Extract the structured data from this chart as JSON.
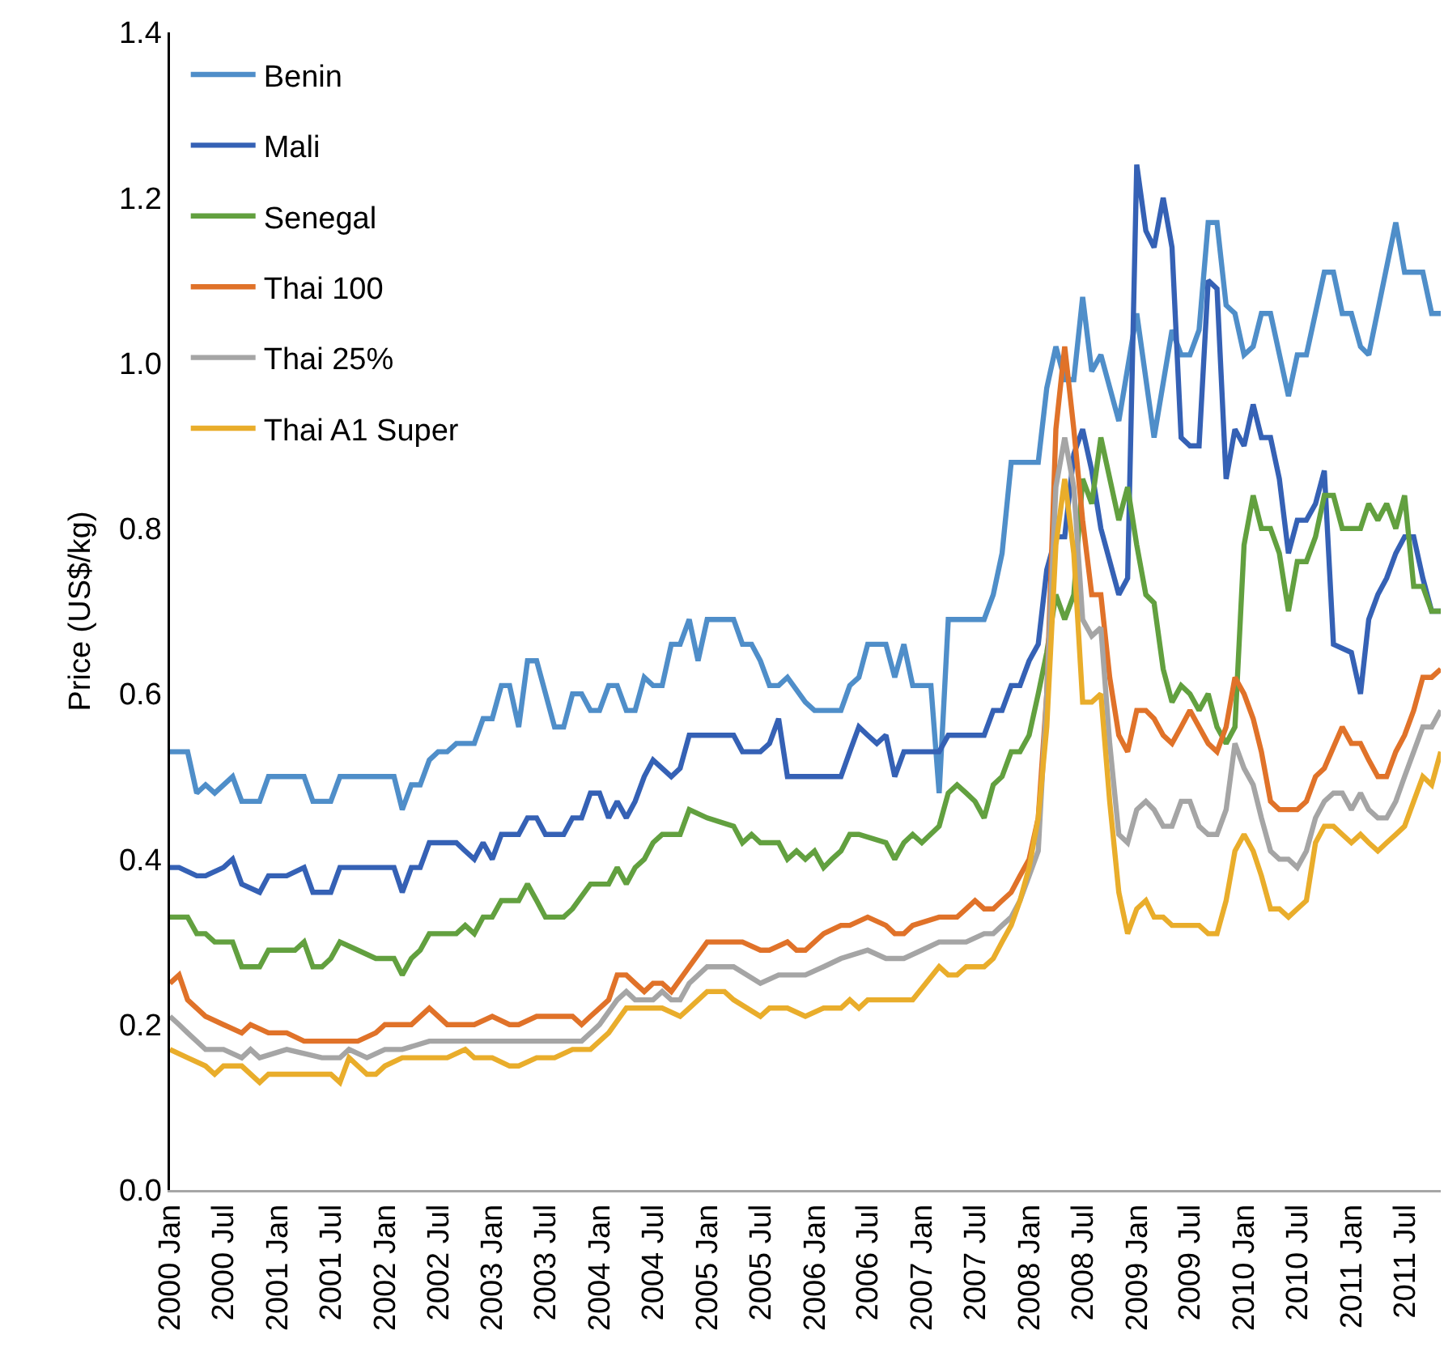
{
  "chart_data": {
    "type": "line",
    "ylabel": "Price (US$/kg)",
    "legend": "top left",
    "grid": false,
    "marker": "none",
    "line_style": "solid",
    "xlim": [
      "2000-01",
      "2011-11"
    ],
    "xticks": [
      {
        "value": "2000-01",
        "label": "2000 Jan"
      },
      {
        "value": "2000-07",
        "label": "2000 Jul"
      },
      {
        "value": "2001-01",
        "label": "2001 Jan"
      },
      {
        "value": "2001-07",
        "label": "2001 Jul"
      },
      {
        "value": "2002-01",
        "label": "2002 Jan"
      },
      {
        "value": "2002-07",
        "label": "2002 Jul"
      },
      {
        "value": "2003-01",
        "label": "2003 Jan"
      },
      {
        "value": "2003-07",
        "label": "2003 Jul"
      },
      {
        "value": "2004-01",
        "label": "2004 Jan"
      },
      {
        "value": "2004-07",
        "label": "2004 Jul"
      },
      {
        "value": "2005-01",
        "label": "2005 Jan"
      },
      {
        "value": "2005-07",
        "label": "2005 Jul"
      },
      {
        "value": "2006-01",
        "label": "2006 Jan"
      },
      {
        "value": "2006-07",
        "label": "2006 Jul"
      },
      {
        "value": "2007-01",
        "label": "2007 Jan"
      },
      {
        "value": "2007-07",
        "label": "2007 Jul"
      },
      {
        "value": "2008-01",
        "label": "2008 Jan"
      },
      {
        "value": "2008-07",
        "label": "2008 Jul"
      },
      {
        "value": "2009-01",
        "label": "2009 Jan"
      },
      {
        "value": "2009-07",
        "label": "2009 Jul"
      },
      {
        "value": "2010-01",
        "label": "2010 Jan"
      },
      {
        "value": "2010-07",
        "label": "2010 Jul"
      },
      {
        "value": "2011-01",
        "label": "2011 Jan"
      },
      {
        "value": "2011-07",
        "label": "2011 Jul"
      }
    ],
    "ylim": [
      0,
      1.4
    ],
    "yticks": [
      {
        "value": 0,
        "label": "0.0"
      },
      {
        "value": 0.2,
        "label": "0.2"
      },
      {
        "value": 0.4,
        "label": "0.4"
      },
      {
        "value": 0.6,
        "label": "0.6"
      },
      {
        "value": 0.8,
        "label": "0.8"
      },
      {
        "value": 1,
        "label": "1.0"
      },
      {
        "value": 1.2,
        "label": "1.2"
      },
      {
        "value": 1.4,
        "label": "1.4"
      }
    ],
    "series": [
      {
        "name": "Benin",
        "color": "#4f8ec9",
        "x": [
          "2000-01",
          "2000-03",
          "2000-04",
          "2000-05",
          "2000-06",
          "2000-08",
          "2000-09",
          "2000-11",
          "2000-12",
          "2001-04",
          "2001-05",
          "2001-07",
          "2001-08",
          "2002-02",
          "2002-03",
          "2002-04",
          "2002-05",
          "2002-06",
          "2002-07",
          "2002-08",
          "2002-09",
          "2002-11",
          "2002-12",
          "2003-01",
          "2003-02",
          "2003-03",
          "2003-04",
          "2003-05",
          "2003-06",
          "2003-08",
          "2003-09",
          "2003-10",
          "2003-11",
          "2003-12",
          "2004-01",
          "2004-02",
          "2004-03",
          "2004-04",
          "2004-05",
          "2004-06",
          "2004-07",
          "2004-08",
          "2004-09",
          "2004-10",
          "2004-11",
          "2004-12",
          "2005-01",
          "2005-04",
          "2005-05",
          "2005-06",
          "2005-07",
          "2005-08",
          "2005-09",
          "2005-10",
          "2005-12",
          "2006-01",
          "2006-04",
          "2006-05",
          "2006-06",
          "2006-07",
          "2006-09",
          "2006-10",
          "2006-11",
          "2006-12",
          "2007-02",
          "2007-03",
          "2007-04",
          "2007-08",
          "2007-09",
          "2007-10",
          "2007-11",
          "2008-02",
          "2008-03",
          "2008-04",
          "2008-05",
          "2008-06",
          "2008-07",
          "2008-08",
          "2008-09",
          "2008-11",
          "2009-01",
          "2009-03",
          "2009-05",
          "2009-06",
          "2009-07",
          "2009-08",
          "2009-09",
          "2009-10",
          "2009-11",
          "2009-12",
          "2010-01",
          "2010-02",
          "2010-03",
          "2010-04",
          "2010-06",
          "2010-07",
          "2010-08",
          "2010-10",
          "2010-11",
          "2010-12",
          "2011-01",
          "2011-02",
          "2011-03",
          "2011-06",
          "2011-07",
          "2011-09",
          "2011-10",
          "2011-11"
        ],
        "values": [
          0.53,
          0.53,
          0.48,
          0.49,
          0.48,
          0.5,
          0.47,
          0.47,
          0.5,
          0.5,
          0.47,
          0.47,
          0.5,
          0.5,
          0.46,
          0.49,
          0.49,
          0.52,
          0.53,
          0.53,
          0.54,
          0.54,
          0.57,
          0.57,
          0.61,
          0.61,
          0.56,
          0.64,
          0.64,
          0.56,
          0.56,
          0.6,
          0.6,
          0.58,
          0.58,
          0.61,
          0.61,
          0.58,
          0.58,
          0.62,
          0.61,
          0.61,
          0.66,
          0.66,
          0.69,
          0.64,
          0.69,
          0.69,
          0.66,
          0.66,
          0.64,
          0.61,
          0.61,
          0.62,
          0.59,
          0.58,
          0.58,
          0.61,
          0.62,
          0.66,
          0.66,
          0.62,
          0.66,
          0.61,
          0.61,
          0.48,
          0.69,
          0.69,
          0.72,
          0.77,
          0.88,
          0.88,
          0.97,
          1.02,
          0.98,
          0.98,
          1.08,
          0.99,
          1.01,
          0.93,
          1.06,
          0.91,
          1.04,
          1.01,
          1.01,
          1.04,
          1.17,
          1.17,
          1.07,
          1.06,
          1.01,
          1.02,
          1.06,
          1.06,
          0.96,
          1.01,
          1.01,
          1.11,
          1.11,
          1.06,
          1.06,
          1.02,
          1.01,
          1.17,
          1.11,
          1.11,
          1.06,
          1.06
        ]
      },
      {
        "name": "Mali",
        "color": "#3561b5",
        "x": [
          "2000-01",
          "2000-02",
          "2000-04",
          "2000-05",
          "2000-07",
          "2000-08",
          "2000-09",
          "2000-11",
          "2000-12",
          "2001-02",
          "2001-04",
          "2001-05",
          "2001-07",
          "2001-08",
          "2001-10",
          "2002-02",
          "2002-03",
          "2002-04",
          "2002-05",
          "2002-06",
          "2002-09",
          "2002-10",
          "2002-11",
          "2002-12",
          "2003-01",
          "2003-02",
          "2003-04",
          "2003-05",
          "2003-06",
          "2003-07",
          "2003-09",
          "2003-10",
          "2003-11",
          "2003-12",
          "2004-01",
          "2004-02",
          "2004-03",
          "2004-04",
          "2004-05",
          "2004-06",
          "2004-07",
          "2004-08",
          "2004-09",
          "2004-10",
          "2004-11",
          "2004-12",
          "2005-04",
          "2005-05",
          "2005-06",
          "2005-07",
          "2005-08",
          "2005-09",
          "2005-10",
          "2005-12",
          "2006-01",
          "2006-03",
          "2006-04",
          "2006-05",
          "2006-06",
          "2006-07",
          "2006-08",
          "2006-09",
          "2006-10",
          "2006-11",
          "2007-03",
          "2007-04",
          "2007-08",
          "2007-09",
          "2007-10",
          "2007-11",
          "2007-12",
          "2008-01",
          "2008-02",
          "2008-03",
          "2008-04",
          "2008-05",
          "2008-06",
          "2008-07",
          "2008-08",
          "2008-09",
          "2008-11",
          "2008-12",
          "2009-01",
          "2009-02",
          "2009-03",
          "2009-04",
          "2009-05",
          "2009-06",
          "2009-07",
          "2009-08",
          "2009-09",
          "2009-10",
          "2009-11",
          "2009-12",
          "2010-01",
          "2010-02",
          "2010-03",
          "2010-04",
          "2010-05",
          "2010-06",
          "2010-07",
          "2010-08",
          "2010-09",
          "2010-10",
          "2010-11",
          "2011-01",
          "2011-02",
          "2011-03",
          "2011-04",
          "2011-05",
          "2011-06",
          "2011-07",
          "2011-08",
          "2011-09",
          "2011-10",
          "2011-11"
        ],
        "values": [
          0.39,
          0.39,
          0.38,
          0.38,
          0.39,
          0.4,
          0.37,
          0.36,
          0.38,
          0.38,
          0.39,
          0.36,
          0.36,
          0.39,
          0.39,
          0.39,
          0.36,
          0.39,
          0.39,
          0.42,
          0.42,
          0.41,
          0.4,
          0.42,
          0.4,
          0.43,
          0.43,
          0.45,
          0.45,
          0.43,
          0.43,
          0.45,
          0.45,
          0.48,
          0.48,
          0.45,
          0.47,
          0.45,
          0.47,
          0.5,
          0.52,
          0.51,
          0.5,
          0.51,
          0.55,
          0.55,
          0.55,
          0.53,
          0.53,
          0.53,
          0.54,
          0.57,
          0.5,
          0.5,
          0.5,
          0.5,
          0.5,
          0.53,
          0.56,
          0.55,
          0.54,
          0.55,
          0.5,
          0.53,
          0.53,
          0.55,
          0.55,
          0.58,
          0.58,
          0.61,
          0.61,
          0.64,
          0.66,
          0.75,
          0.79,
          0.79,
          0.89,
          0.92,
          0.87,
          0.8,
          0.72,
          0.74,
          1.24,
          1.16,
          1.14,
          1.2,
          1.14,
          0.91,
          0.9,
          0.9,
          1.1,
          1.09,
          0.86,
          0.92,
          0.9,
          0.95,
          0.91,
          0.91,
          0.86,
          0.77,
          0.81,
          0.81,
          0.83,
          0.87,
          0.66,
          0.65,
          0.6,
          0.69,
          0.72,
          0.74,
          0.77,
          0.79,
          0.79,
          0.74,
          0.7,
          0.7
        ]
      },
      {
        "name": "Senegal",
        "color": "#62a03f",
        "x": [
          "2000-01",
          "2000-03",
          "2000-04",
          "2000-05",
          "2000-06",
          "2000-08",
          "2000-09",
          "2000-11",
          "2000-12",
          "2001-01",
          "2001-03",
          "2001-04",
          "2001-05",
          "2001-06",
          "2001-07",
          "2001-08",
          "2001-10",
          "2001-12",
          "2002-02",
          "2002-03",
          "2002-04",
          "2002-05",
          "2002-06",
          "2002-07",
          "2002-09",
          "2002-10",
          "2002-11",
          "2002-12",
          "2003-01",
          "2003-02",
          "2003-03",
          "2003-04",
          "2003-05",
          "2003-06",
          "2003-07",
          "2003-08",
          "2003-09",
          "2003-10",
          "2003-12",
          "2004-01",
          "2004-02",
          "2004-03",
          "2004-04",
          "2004-05",
          "2004-06",
          "2004-07",
          "2004-08",
          "2004-09",
          "2004-10",
          "2004-11",
          "2005-01",
          "2005-04",
          "2005-05",
          "2005-06",
          "2005-07",
          "2005-08",
          "2005-09",
          "2005-10",
          "2005-11",
          "2005-12",
          "2006-01",
          "2006-02",
          "2006-03",
          "2006-04",
          "2006-05",
          "2006-06",
          "2006-09",
          "2006-10",
          "2006-11",
          "2006-12",
          "2007-01",
          "2007-03",
          "2007-04",
          "2007-05",
          "2007-06",
          "2007-07",
          "2007-08",
          "2007-09",
          "2007-10",
          "2007-11",
          "2007-12",
          "2008-01",
          "2008-02",
          "2008-03",
          "2008-04",
          "2008-05",
          "2008-06",
          "2008-07",
          "2008-08",
          "2008-09",
          "2008-11",
          "2008-12",
          "2009-01",
          "2009-02",
          "2009-03",
          "2009-04",
          "2009-05",
          "2009-06",
          "2009-07",
          "2009-08",
          "2009-09",
          "2009-10",
          "2009-11",
          "2009-12",
          "2010-01",
          "2010-02",
          "2010-03",
          "2010-04",
          "2010-05",
          "2010-06",
          "2010-07",
          "2010-08",
          "2010-09",
          "2010-10",
          "2010-11",
          "2010-12",
          "2011-02",
          "2011-03",
          "2011-04",
          "2011-05",
          "2011-06",
          "2011-07",
          "2011-08",
          "2011-09",
          "2011-10",
          "2011-11"
        ],
        "values": [
          0.33,
          0.33,
          0.31,
          0.31,
          0.3,
          0.3,
          0.27,
          0.27,
          0.29,
          0.29,
          0.29,
          0.3,
          0.27,
          0.27,
          0.28,
          0.3,
          0.29,
          0.28,
          0.28,
          0.26,
          0.28,
          0.29,
          0.31,
          0.31,
          0.31,
          0.32,
          0.31,
          0.33,
          0.33,
          0.35,
          0.35,
          0.35,
          0.37,
          0.35,
          0.33,
          0.33,
          0.33,
          0.34,
          0.37,
          0.37,
          0.37,
          0.39,
          0.37,
          0.39,
          0.4,
          0.42,
          0.43,
          0.43,
          0.43,
          0.46,
          0.45,
          0.44,
          0.42,
          0.43,
          0.42,
          0.42,
          0.42,
          0.4,
          0.41,
          0.4,
          0.41,
          0.39,
          0.4,
          0.41,
          0.43,
          0.43,
          0.42,
          0.4,
          0.42,
          0.43,
          0.42,
          0.44,
          0.48,
          0.49,
          0.48,
          0.47,
          0.45,
          0.49,
          0.5,
          0.53,
          0.53,
          0.55,
          0.6,
          0.65,
          0.72,
          0.69,
          0.72,
          0.86,
          0.83,
          0.91,
          0.81,
          0.85,
          0.78,
          0.72,
          0.71,
          0.63,
          0.59,
          0.61,
          0.6,
          0.58,
          0.6,
          0.56,
          0.54,
          0.56,
          0.78,
          0.84,
          0.8,
          0.8,
          0.77,
          0.7,
          0.76,
          0.76,
          0.79,
          0.84,
          0.84,
          0.8,
          0.8,
          0.83,
          0.81,
          0.83,
          0.8,
          0.84,
          0.73,
          0.73,
          0.7,
          0.7
        ]
      },
      {
        "name": "Thai 100",
        "color": "#e07229",
        "x": [
          "2000-01",
          "2000-02",
          "2000-03",
          "2000-05",
          "2000-07",
          "2000-09",
          "2000-10",
          "2000-12",
          "2001-02",
          "2001-04",
          "2001-06",
          "2001-08",
          "2001-10",
          "2001-12",
          "2002-01",
          "2002-02",
          "2002-04",
          "2002-06",
          "2002-08",
          "2002-10",
          "2002-11",
          "2003-01",
          "2003-03",
          "2003-04",
          "2003-06",
          "2003-08",
          "2003-10",
          "2003-11",
          "2003-12",
          "2004-01",
          "2004-02",
          "2004-03",
          "2004-04",
          "2004-05",
          "2004-06",
          "2004-07",
          "2004-08",
          "2004-09",
          "2004-11",
          "2005-01",
          "2005-04",
          "2005-05",
          "2005-07",
          "2005-08",
          "2005-10",
          "2005-11",
          "2005-12",
          "2006-02",
          "2006-04",
          "2006-05",
          "2006-07",
          "2006-09",
          "2006-10",
          "2006-11",
          "2006-12",
          "2007-03",
          "2007-04",
          "2007-05",
          "2007-06",
          "2007-07",
          "2007-08",
          "2007-09",
          "2007-10",
          "2007-11",
          "2007-12",
          "2008-01",
          "2008-02",
          "2008-03",
          "2008-04",
          "2008-05",
          "2008-06",
          "2008-07",
          "2008-08",
          "2008-09",
          "2008-10",
          "2008-11",
          "2008-12",
          "2009-01",
          "2009-02",
          "2009-03",
          "2009-04",
          "2009-05",
          "2009-06",
          "2009-07",
          "2009-08",
          "2009-09",
          "2009-10",
          "2009-11",
          "2009-12",
          "2010-01",
          "2010-02",
          "2010-03",
          "2010-04",
          "2010-05",
          "2010-06",
          "2010-07",
          "2010-08",
          "2010-09",
          "2010-10",
          "2010-12",
          "2011-01",
          "2011-02",
          "2011-03",
          "2011-04",
          "2011-05",
          "2011-06",
          "2011-07",
          "2011-08",
          "2011-09",
          "2011-10",
          "2011-11"
        ],
        "values": [
          0.25,
          0.26,
          0.23,
          0.21,
          0.2,
          0.19,
          0.2,
          0.19,
          0.19,
          0.18,
          0.18,
          0.18,
          0.18,
          0.19,
          0.2,
          0.2,
          0.2,
          0.22,
          0.2,
          0.2,
          0.2,
          0.21,
          0.2,
          0.2,
          0.21,
          0.21,
          0.21,
          0.2,
          0.21,
          0.22,
          0.23,
          0.26,
          0.26,
          0.25,
          0.24,
          0.25,
          0.25,
          0.24,
          0.27,
          0.3,
          0.3,
          0.3,
          0.29,
          0.29,
          0.3,
          0.29,
          0.29,
          0.31,
          0.32,
          0.32,
          0.33,
          0.32,
          0.31,
          0.31,
          0.32,
          0.33,
          0.33,
          0.33,
          0.34,
          0.35,
          0.34,
          0.34,
          0.35,
          0.36,
          0.38,
          0.4,
          0.45,
          0.6,
          0.92,
          1.02,
          0.92,
          0.81,
          0.72,
          0.72,
          0.62,
          0.55,
          0.53,
          0.58,
          0.58,
          0.57,
          0.55,
          0.54,
          0.56,
          0.58,
          0.56,
          0.54,
          0.53,
          0.56,
          0.62,
          0.6,
          0.57,
          0.53,
          0.47,
          0.46,
          0.46,
          0.46,
          0.47,
          0.5,
          0.51,
          0.56,
          0.54,
          0.54,
          0.52,
          0.5,
          0.5,
          0.53,
          0.55,
          0.58,
          0.62,
          0.62,
          0.63
        ]
      },
      {
        "name": "Thai 25%",
        "color": "#a5a5a5",
        "x": [
          "2000-01",
          "2000-02",
          "2000-03",
          "2000-05",
          "2000-07",
          "2000-09",
          "2000-10",
          "2000-11",
          "2001-02",
          "2001-06",
          "2001-08",
          "2001-09",
          "2001-11",
          "2002-01",
          "2002-03",
          "2002-06",
          "2002-08",
          "2002-10",
          "2003-01",
          "2003-04",
          "2003-06",
          "2003-08",
          "2003-11",
          "2004-01",
          "2004-03",
          "2004-04",
          "2004-05",
          "2004-07",
          "2004-08",
          "2004-09",
          "2004-10",
          "2004-11",
          "2005-01",
          "2005-03",
          "2005-04",
          "2005-07",
          "2005-09",
          "2005-10",
          "2005-11",
          "2005-12",
          "2006-02",
          "2006-04",
          "2006-07",
          "2006-09",
          "2006-11",
          "2007-01",
          "2007-03",
          "2007-04",
          "2007-06",
          "2007-08",
          "2007-09",
          "2007-10",
          "2007-11",
          "2007-12",
          "2008-01",
          "2008-02",
          "2008-03",
          "2008-04",
          "2008-05",
          "2008-06",
          "2008-07",
          "2008-08",
          "2008-09",
          "2008-10",
          "2008-11",
          "2008-12",
          "2009-01",
          "2009-02",
          "2009-03",
          "2009-04",
          "2009-05",
          "2009-06",
          "2009-07",
          "2009-08",
          "2009-09",
          "2009-10",
          "2009-11",
          "2009-12",
          "2010-01",
          "2010-02",
          "2010-03",
          "2010-04",
          "2010-05",
          "2010-06",
          "2010-07",
          "2010-08",
          "2010-09",
          "2010-10",
          "2010-11",
          "2010-12",
          "2011-01",
          "2011-02",
          "2011-03",
          "2011-04",
          "2011-05",
          "2011-06",
          "2011-07",
          "2011-08",
          "2011-09",
          "2011-10",
          "2011-11"
        ],
        "values": [
          0.21,
          0.2,
          0.19,
          0.17,
          0.17,
          0.16,
          0.17,
          0.16,
          0.17,
          0.16,
          0.16,
          0.17,
          0.16,
          0.17,
          0.17,
          0.18,
          0.18,
          0.18,
          0.18,
          0.18,
          0.18,
          0.18,
          0.18,
          0.2,
          0.23,
          0.24,
          0.23,
          0.23,
          0.24,
          0.23,
          0.23,
          0.25,
          0.27,
          0.27,
          0.27,
          0.25,
          0.26,
          0.26,
          0.26,
          0.26,
          0.27,
          0.28,
          0.29,
          0.28,
          0.28,
          0.29,
          0.3,
          0.3,
          0.3,
          0.31,
          0.31,
          0.32,
          0.33,
          0.35,
          0.38,
          0.41,
          0.6,
          0.85,
          0.91,
          0.85,
          0.69,
          0.67,
          0.68,
          0.54,
          0.43,
          0.42,
          0.46,
          0.47,
          0.46,
          0.44,
          0.44,
          0.47,
          0.47,
          0.44,
          0.43,
          0.43,
          0.46,
          0.54,
          0.51,
          0.49,
          0.45,
          0.41,
          0.4,
          0.4,
          0.39,
          0.41,
          0.45,
          0.47,
          0.48,
          0.48,
          0.46,
          0.48,
          0.46,
          0.45,
          0.45,
          0.47,
          0.5,
          0.53,
          0.56,
          0.56,
          0.58
        ]
      },
      {
        "name": "Thai A1 Super",
        "color": "#e9ad2b",
        "x": [
          "2000-01",
          "2000-03",
          "2000-05",
          "2000-06",
          "2000-07",
          "2000-09",
          "2000-11",
          "2000-12",
          "2001-02",
          "2001-05",
          "2001-07",
          "2001-08",
          "2001-09",
          "2001-10",
          "2001-11",
          "2001-12",
          "2002-01",
          "2002-03",
          "2002-05",
          "2002-07",
          "2002-08",
          "2002-10",
          "2002-11",
          "2003-01",
          "2003-03",
          "2003-04",
          "2003-06",
          "2003-08",
          "2003-10",
          "2003-12",
          "2004-02",
          "2004-04",
          "2004-05",
          "2004-07",
          "2004-08",
          "2004-10",
          "2004-11",
          "2005-01",
          "2005-03",
          "2005-04",
          "2005-07",
          "2005-08",
          "2005-10",
          "2005-12",
          "2006-02",
          "2006-04",
          "2006-05",
          "2006-06",
          "2006-07",
          "2006-11",
          "2006-12",
          "2007-03",
          "2007-04",
          "2007-05",
          "2007-06",
          "2007-08",
          "2007-09",
          "2007-10",
          "2007-11",
          "2007-12",
          "2008-01",
          "2008-02",
          "2008-03",
          "2008-04",
          "2008-05",
          "2008-06",
          "2008-07",
          "2008-08",
          "2008-09",
          "2008-10",
          "2008-11",
          "2008-12",
          "2009-01",
          "2009-02",
          "2009-03",
          "2009-04",
          "2009-05",
          "2009-07",
          "2009-08",
          "2009-09",
          "2009-10",
          "2009-11",
          "2009-12",
          "2010-01",
          "2010-02",
          "2010-03",
          "2010-04",
          "2010-05",
          "2010-06",
          "2010-07",
          "2010-08",
          "2010-09",
          "2010-10",
          "2010-11",
          "2010-12",
          "2011-01",
          "2011-02",
          "2011-03",
          "2011-04",
          "2011-05",
          "2011-06",
          "2011-07",
          "2011-08",
          "2011-09",
          "2011-10",
          "2011-11"
        ],
        "values": [
          0.17,
          0.16,
          0.15,
          0.14,
          0.15,
          0.15,
          0.13,
          0.14,
          0.14,
          0.14,
          0.14,
          0.13,
          0.16,
          0.15,
          0.14,
          0.14,
          0.15,
          0.16,
          0.16,
          0.16,
          0.16,
          0.17,
          0.16,
          0.16,
          0.15,
          0.15,
          0.16,
          0.16,
          0.17,
          0.17,
          0.19,
          0.22,
          0.22,
          0.22,
          0.22,
          0.21,
          0.22,
          0.24,
          0.24,
          0.23,
          0.21,
          0.22,
          0.22,
          0.21,
          0.22,
          0.22,
          0.23,
          0.22,
          0.23,
          0.23,
          0.23,
          0.27,
          0.26,
          0.26,
          0.27,
          0.27,
          0.28,
          0.3,
          0.32,
          0.35,
          0.39,
          0.45,
          0.56,
          0.78,
          0.86,
          0.77,
          0.59,
          0.59,
          0.6,
          0.47,
          0.36,
          0.31,
          0.34,
          0.35,
          0.33,
          0.33,
          0.32,
          0.32,
          0.32,
          0.31,
          0.31,
          0.35,
          0.41,
          0.43,
          0.41,
          0.38,
          0.34,
          0.34,
          0.33,
          0.34,
          0.35,
          0.42,
          0.44,
          0.44,
          0.43,
          0.42,
          0.43,
          0.42,
          0.41,
          0.42,
          0.43,
          0.44,
          0.47,
          0.5,
          0.49,
          0.53
        ]
      }
    ]
  }
}
